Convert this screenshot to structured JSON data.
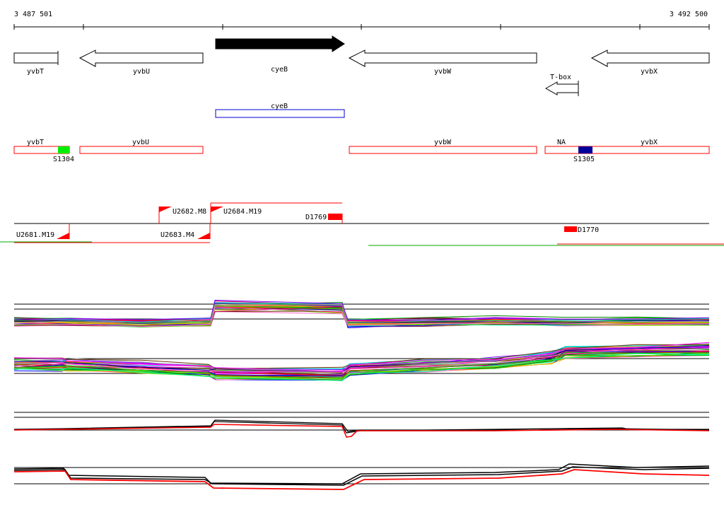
{
  "ruler": {
    "start": "3 487 501",
    "end": "3 492 500"
  },
  "genes": [
    {
      "id": "gene-yvbT",
      "label": "yvbT",
      "dir": "right",
      "fill": "#ffffff"
    },
    {
      "id": "gene-yvbU",
      "label": "yvbU",
      "dir": "left",
      "fill": "#ffffff"
    },
    {
      "id": "gene-cyeB",
      "label": "cyeB",
      "dir": "right",
      "fill": "#000000"
    },
    {
      "id": "gene-yvbW",
      "label": "yvbW",
      "dir": "left",
      "fill": "#ffffff"
    },
    {
      "id": "gene-yvbX",
      "label": "yvbX",
      "dir": "left",
      "fill": "#ffffff"
    }
  ],
  "tbox": {
    "label": "T-box"
  },
  "blue_feature": {
    "label": "cyeB",
    "color": "#0000cc"
  },
  "red_features": [
    {
      "label": "yvbT"
    },
    {
      "label": "yvbU"
    },
    {
      "label": "yvbW"
    },
    {
      "label": "NA"
    },
    {
      "label": "yvbX"
    }
  ],
  "sites": [
    {
      "label": "S1304",
      "color": "#00ee00"
    },
    {
      "label": "S1305",
      "color": "#000099"
    }
  ],
  "transcripts": {
    "u2682": "U2682.M8",
    "u2684": "U2684.M19",
    "u2681": "U2681.M19",
    "u2683": "U2683.M4",
    "d1769": "D1769",
    "d1770": "D1770"
  },
  "colors": {
    "feature_red": "#ff0000",
    "gene_black": "#000000",
    "green": "#00aa00",
    "blue": "#0000cc"
  }
}
